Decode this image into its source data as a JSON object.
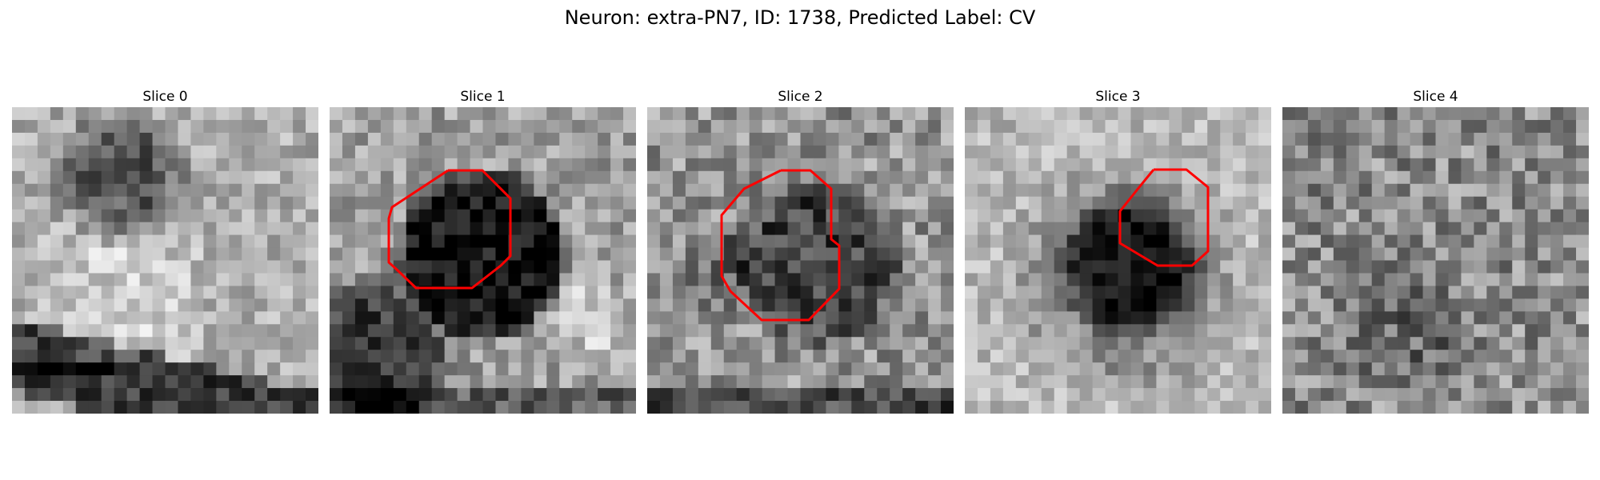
{
  "figure": {
    "title": "Neuron: extra-PN7, ID: 1738, Predicted Label: CV"
  },
  "slices": [
    {
      "label": "Slice 0",
      "has_outline": false
    },
    {
      "label": "Slice 1",
      "has_outline": true
    },
    {
      "label": "Slice 2",
      "has_outline": true
    },
    {
      "label": "Slice 3",
      "has_outline": true
    },
    {
      "label": "Slice 4",
      "has_outline": false
    }
  ],
  "colors": {
    "outline": "#ff0000",
    "background": "#ffffff"
  }
}
